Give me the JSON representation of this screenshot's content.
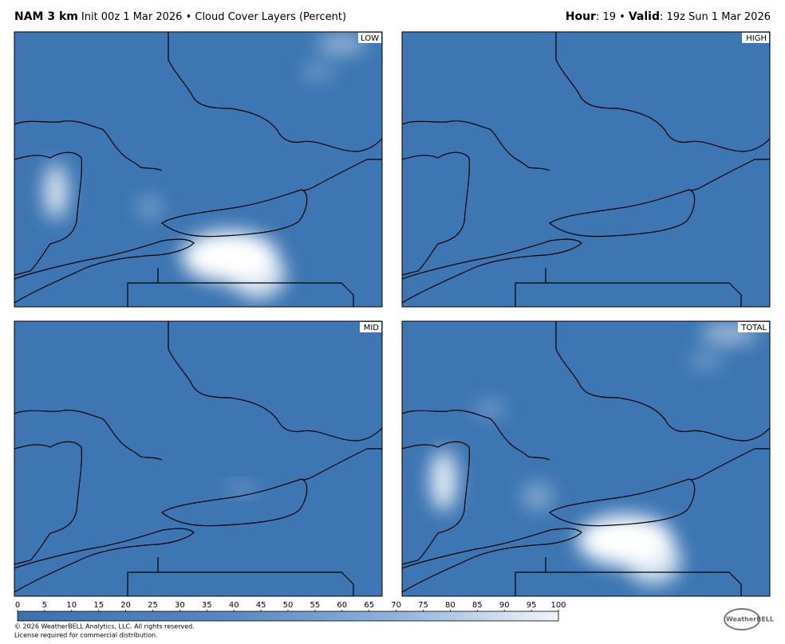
{
  "header": {
    "model": "NAM 3 km",
    "subtitle": "Init 00z 1 Mar 2026 • Cloud Cover Layers (Percent)",
    "hour_label": "Hour",
    "hour_value": ": 19 •",
    "valid_label": "Valid",
    "valid_value": ": 19z Sun 1 Mar 2026"
  },
  "panels": [
    {
      "label": "LOW"
    },
    {
      "label": "HIGH"
    },
    {
      "label": "MID"
    },
    {
      "label": "TOTAL"
    }
  ],
  "colorbar": {
    "ticks": [
      0,
      5,
      10,
      15,
      20,
      25,
      30,
      35,
      40,
      45,
      50,
      55,
      60,
      65,
      70,
      75,
      80,
      85,
      90,
      95,
      100
    ]
  },
  "footer": {
    "copyright": "© 2026 WeatherBELL Analytics, LLC. All rights reserved.",
    "license": "License required for commercial distribution.",
    "logo": "WeatherBELL"
  }
}
